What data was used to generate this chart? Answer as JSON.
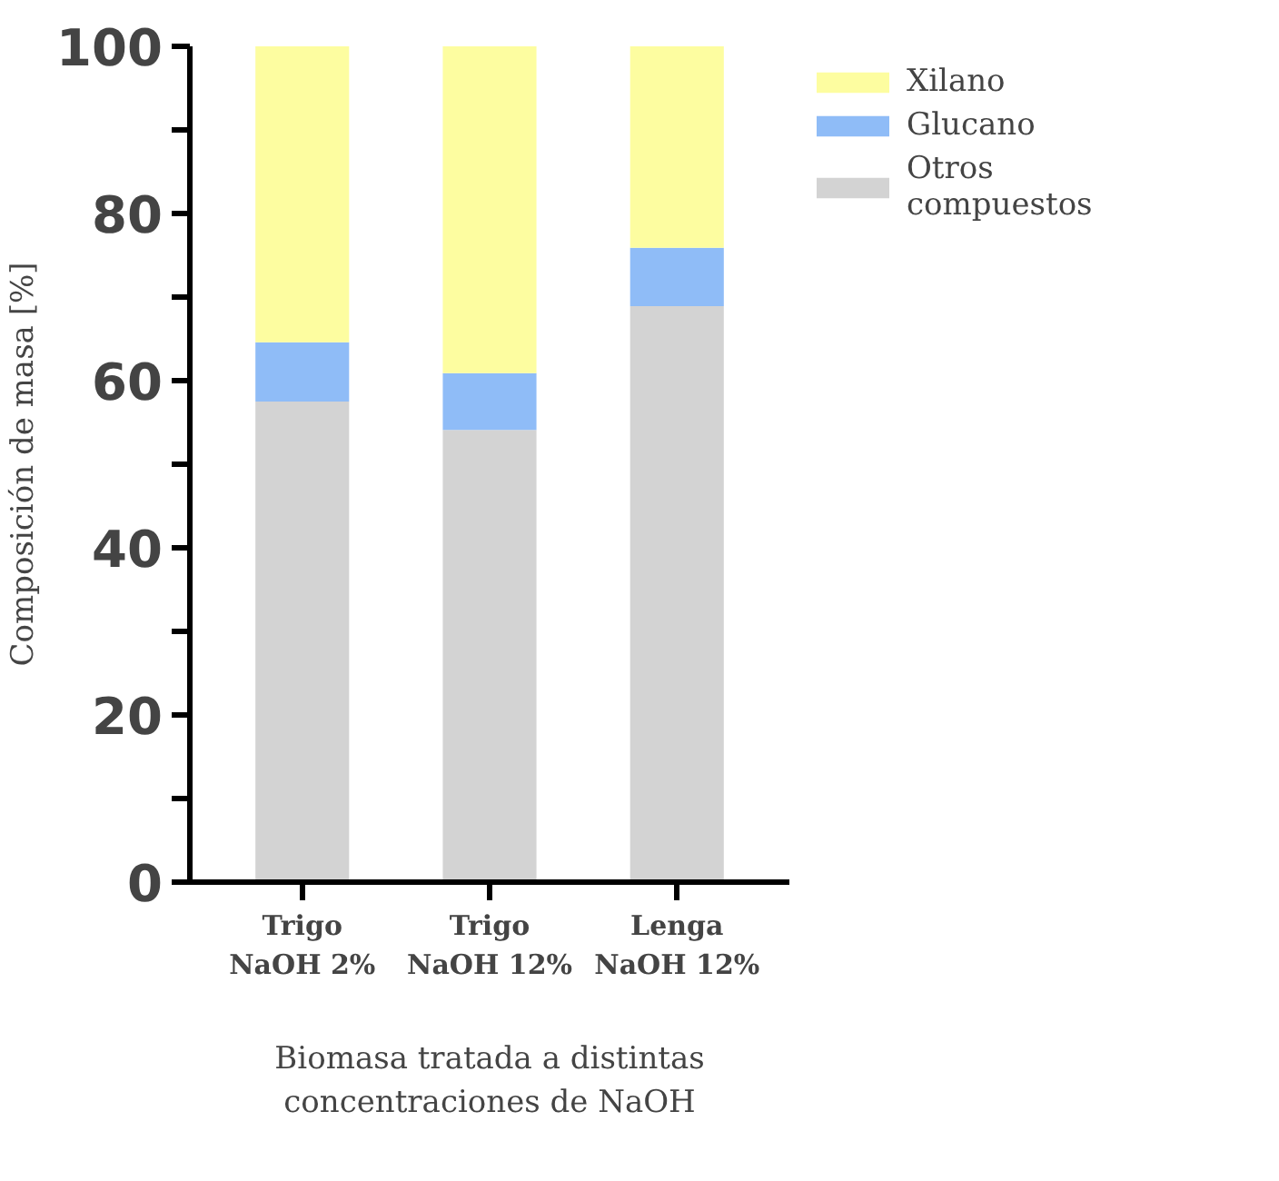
{
  "chart_data": {
    "type": "bar",
    "stacked": true,
    "categories": [
      "Trigo\nNaOH 2%",
      "Trigo\nNaOH 12%",
      "Lenga\nNaOH 12%"
    ],
    "series": [
      {
        "name": "Otros\ncompuestos",
        "color": "#d3d3d3",
        "values": [
          57.5,
          54.1,
          68.9
        ]
      },
      {
        "name": "Glucano",
        "color": "#8fbcf7",
        "values": [
          7.1,
          6.8,
          7.0
        ]
      },
      {
        "name": "Xilano",
        "color": "#fdfda0",
        "values": [
          35.4,
          39.1,
          24.1
        ]
      }
    ],
    "xlabel": "Biomasa tratada a distintas\nconcentraciones de NaOH",
    "ylabel": "Composición de masa [%]",
    "ylim": [
      0,
      100
    ],
    "yticks": [
      0,
      {
        "value": 10,
        "label": null
      },
      20,
      {
        "value": 30,
        "label": null
      },
      40,
      {
        "value": 50,
        "label": null
      },
      60,
      {
        "value": 70,
        "label": null
      },
      80,
      {
        "value": 90,
        "label": null
      },
      100
    ],
    "grid": false,
    "legend": "top right"
  }
}
